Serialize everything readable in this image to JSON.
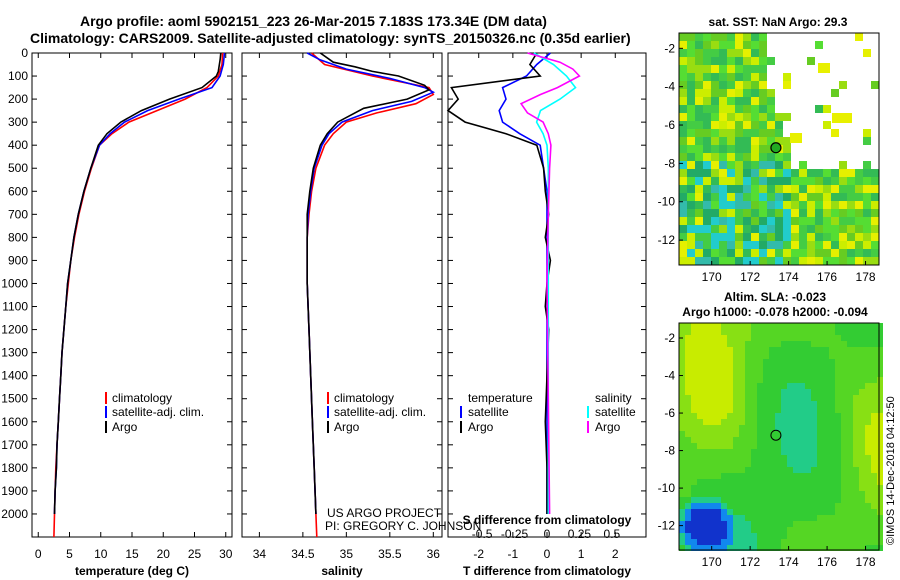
{
  "header": {
    "line1": "Argo profile: aoml 5902151_223 26-Mar-2015 7.183S 173.34E (DM data)",
    "line2": "Climatology: CARS2009. Satellite-adjusted climatology: synTS_20150326.nc (0.35d earlier)"
  },
  "legend_labels": {
    "climatology": "climatology",
    "satellite_adj": "satellite-adj. clim.",
    "argo": "Argo",
    "temperature": "temperature",
    "salinity": "salinity",
    "satellite": "satellite"
  },
  "credits": {
    "project": "US ARGO PROJECT",
    "pi": "PI: GREGORY C. JOHNSON",
    "stamp": "©IMOS 14-Dec-2018 04:12:50"
  },
  "map_titles": {
    "sst": "sat. SST: NaN Argo: 29.3",
    "sla1": "Altim. SLA: -0.023",
    "sla2": "Argo h1000: -0.078 h2000: -0.094"
  },
  "colors": {
    "climatology": "#ff0000",
    "satellite": "#0000ff",
    "argo": "#000000",
    "salinity_sat": "#00ffff",
    "salinity_argo": "#ff00ff"
  },
  "chart_data": [
    {
      "id": "temperature",
      "type": "line",
      "xlabel": "temperature (deg C)",
      "ylabel": "",
      "xlim": [
        -1,
        31
      ],
      "ylim": [
        2100,
        0
      ],
      "x_ticks": [
        0,
        5,
        10,
        15,
        20,
        25,
        30
      ],
      "y_ticks": [
        0,
        100,
        200,
        300,
        400,
        500,
        600,
        700,
        800,
        900,
        1000,
        1100,
        1200,
        1300,
        1400,
        1500,
        1600,
        1700,
        1800,
        1900,
        2000
      ],
      "series": [
        {
          "name": "climatology",
          "color": "#ff0000",
          "points": [
            [
              29.5,
              0
            ],
            [
              29.4,
              50
            ],
            [
              28.8,
              100
            ],
            [
              27,
              150
            ],
            [
              23.5,
              200
            ],
            [
              19,
              250
            ],
            [
              14.5,
              300
            ],
            [
              11.8,
              350
            ],
            [
              9.8,
              400
            ],
            [
              8.5,
              500
            ],
            [
              7.4,
              600
            ],
            [
              6.5,
              700
            ],
            [
              5.8,
              800
            ],
            [
              5.2,
              900
            ],
            [
              4.8,
              1000
            ],
            [
              4.4,
              1100
            ],
            [
              4.1,
              1200
            ],
            [
              3.8,
              1300
            ],
            [
              3.6,
              1400
            ],
            [
              3.4,
              1500
            ],
            [
              3.2,
              1600
            ],
            [
              3,
              1700
            ],
            [
              2.8,
              1800
            ],
            [
              2.7,
              1900
            ],
            [
              2.6,
              2000
            ],
            [
              2.5,
              2100
            ]
          ]
        },
        {
          "name": "satellite-adj. clim.",
          "color": "#0000ff",
          "points": [
            [
              29.8,
              0
            ],
            [
              29.6,
              50
            ],
            [
              29.1,
              100
            ],
            [
              27.8,
              150
            ],
            [
              22.5,
              200
            ],
            [
              17.5,
              250
            ],
            [
              13.8,
              300
            ],
            [
              11.5,
              350
            ],
            [
              9.8,
              400
            ],
            [
              8.4,
              500
            ],
            [
              7.3,
              600
            ],
            [
              6.4,
              700
            ],
            [
              5.7,
              800
            ],
            [
              5.2,
              900
            ],
            [
              4.7,
              1000
            ],
            [
              4.4,
              1100
            ],
            [
              4.1,
              1200
            ],
            [
              3.8,
              1300
            ],
            [
              3.6,
              1400
            ],
            [
              3.4,
              1500
            ],
            [
              3.2,
              1600
            ],
            [
              3,
              1700
            ],
            [
              2.9,
              1800
            ],
            [
              2.7,
              1900
            ],
            [
              2.6,
              2000
            ]
          ]
        },
        {
          "name": "Argo",
          "color": "#000000",
          "points": [
            [
              29.2,
              0
            ],
            [
              29.1,
              30
            ],
            [
              28.8,
              80
            ],
            [
              28.5,
              100
            ],
            [
              26.2,
              150
            ],
            [
              21,
              200
            ],
            [
              16.5,
              250
            ],
            [
              13.2,
              300
            ],
            [
              11,
              350
            ],
            [
              9.6,
              400
            ],
            [
              8.4,
              500
            ],
            [
              7.3,
              600
            ],
            [
              6.4,
              700
            ],
            [
              5.7,
              800
            ],
            [
              5.2,
              900
            ],
            [
              4.7,
              1000
            ],
            [
              4.4,
              1100
            ],
            [
              4.1,
              1200
            ],
            [
              3.8,
              1300
            ],
            [
              3.6,
              1400
            ],
            [
              3.4,
              1500
            ],
            [
              3.2,
              1600
            ],
            [
              3,
              1700
            ],
            [
              2.9,
              1800
            ],
            [
              2.7,
              1900
            ],
            [
              2.6,
              2000
            ]
          ]
        }
      ]
    },
    {
      "id": "salinity",
      "type": "line",
      "xlabel": "salinity",
      "ylabel": "",
      "xlim": [
        33.8,
        36.1
      ],
      "ylim": [
        2100,
        0
      ],
      "x_ticks": [
        34,
        34.5,
        35,
        35.5,
        36
      ],
      "x_ticklabels": [
        "34",
        "34.5",
        "35",
        "35.5",
        "36"
      ],
      "series": [
        {
          "name": "climatology",
          "color": "#ff0000",
          "points": [
            [
              34.6,
              0
            ],
            [
              34.75,
              50
            ],
            [
              35.3,
              100
            ],
            [
              35.95,
              150
            ],
            [
              36.0,
              180
            ],
            [
              35.8,
              220
            ],
            [
              35.35,
              260
            ],
            [
              35.0,
              300
            ],
            [
              34.85,
              350
            ],
            [
              34.75,
              400
            ],
            [
              34.65,
              500
            ],
            [
              34.6,
              600
            ],
            [
              34.57,
              700
            ],
            [
              34.55,
              800
            ],
            [
              34.55,
              1000
            ],
            [
              34.57,
              1200
            ],
            [
              34.59,
              1400
            ],
            [
              34.61,
              1600
            ],
            [
              34.63,
              1800
            ],
            [
              34.65,
              2000
            ],
            [
              34.66,
              2100
            ]
          ]
        },
        {
          "name": "satellite-adj. clim.",
          "color": "#0000ff",
          "points": [
            [
              34.55,
              0
            ],
            [
              34.7,
              30
            ],
            [
              35.0,
              70
            ],
            [
              35.5,
              110
            ],
            [
              35.9,
              150
            ],
            [
              36.0,
              170
            ],
            [
              35.75,
              210
            ],
            [
              35.3,
              250
            ],
            [
              34.95,
              300
            ],
            [
              34.8,
              350
            ],
            [
              34.72,
              400
            ],
            [
              34.63,
              500
            ],
            [
              34.59,
              600
            ],
            [
              34.56,
              700
            ],
            [
              34.55,
              800
            ],
            [
              34.55,
              1000
            ],
            [
              34.57,
              1200
            ],
            [
              34.59,
              1400
            ],
            [
              34.61,
              1600
            ],
            [
              34.63,
              1800
            ],
            [
              34.65,
              2000
            ]
          ]
        },
        {
          "name": "Argo",
          "color": "#000000",
          "points": [
            [
              34.7,
              0
            ],
            [
              34.85,
              40
            ],
            [
              35.1,
              60
            ],
            [
              35.3,
              80
            ],
            [
              35.6,
              100
            ],
            [
              35.9,
              140
            ],
            [
              35.95,
              160
            ],
            [
              35.7,
              200
            ],
            [
              35.2,
              240
            ],
            [
              34.9,
              300
            ],
            [
              34.78,
              350
            ],
            [
              34.7,
              400
            ],
            [
              34.62,
              500
            ],
            [
              34.58,
              600
            ],
            [
              34.55,
              700
            ],
            [
              34.55,
              800
            ],
            [
              34.55,
              1000
            ],
            [
              34.57,
              1200
            ],
            [
              34.59,
              1400
            ],
            [
              34.61,
              1600
            ],
            [
              34.63,
              1800
            ],
            [
              34.65,
              2000
            ]
          ]
        }
      ]
    },
    {
      "id": "difference",
      "type": "line",
      "xlabel": "T difference from climatology",
      "x_ticks": [
        -2,
        -1,
        0,
        1,
        2
      ],
      "x_ticklabels": [
        "-2",
        "-1",
        "0",
        "1",
        "2"
      ],
      "xlim": [
        -2.9,
        2.9
      ],
      "secondary_x": {
        "label": "S difference from climatology",
        "ticks": [
          -0.5,
          -0.25,
          0,
          0.25,
          0.5
        ],
        "ticklabels": [
          "-0.5",
          "-0.25",
          "0",
          "0.25",
          "0.5"
        ],
        "scale": 3.8
      },
      "ylim": [
        2100,
        0
      ],
      "series": [
        {
          "name": "temperature satellite",
          "color": "#0000ff",
          "units": "T",
          "points": [
            [
              0.1,
              0
            ],
            [
              -0.3,
              50
            ],
            [
              -0.6,
              100
            ],
            [
              -1.3,
              150
            ],
            [
              -1.2,
              200
            ],
            [
              -1.4,
              250
            ],
            [
              -1.3,
              300
            ],
            [
              -0.8,
              350
            ],
            [
              -0.2,
              400
            ],
            [
              -0.1,
              500
            ],
            [
              0,
              600
            ],
            [
              0,
              800
            ],
            [
              0,
              1000
            ],
            [
              0,
              1500
            ],
            [
              0,
              2000
            ]
          ]
        },
        {
          "name": "temperature Argo",
          "color": "#000000",
          "units": "T",
          "points": [
            [
              -0.3,
              0
            ],
            [
              -0.5,
              50
            ],
            [
              -0.2,
              100
            ],
            [
              -2.8,
              150
            ],
            [
              -2.6,
              200
            ],
            [
              -2.9,
              250
            ],
            [
              -2.4,
              300
            ],
            [
              -1.2,
              350
            ],
            [
              -0.3,
              400
            ],
            [
              -0.1,
              500
            ],
            [
              -0.05,
              600
            ],
            [
              0.05,
              700
            ],
            [
              -0.05,
              800
            ],
            [
              0.1,
              900
            ],
            [
              0,
              1000
            ],
            [
              -0.05,
              1100
            ],
            [
              0.05,
              1200
            ],
            [
              0,
              1400
            ],
            [
              -0.05,
              1600
            ],
            [
              0,
              1800
            ],
            [
              0,
              2000
            ]
          ]
        },
        {
          "name": "salinity satellite",
          "color": "#00ffff",
          "units": "S",
          "points": [
            [
              -0.1,
              0
            ],
            [
              0.05,
              50
            ],
            [
              0.15,
              100
            ],
            [
              0.22,
              150
            ],
            [
              0.1,
              200
            ],
            [
              -0.05,
              250
            ],
            [
              -0.08,
              300
            ],
            [
              -0.03,
              350
            ],
            [
              0,
              400
            ],
            [
              0.01,
              500
            ],
            [
              0.01,
              700
            ],
            [
              0.01,
              1000
            ],
            [
              0.01,
              1500
            ],
            [
              0.01,
              2000
            ]
          ]
        },
        {
          "name": "salinity Argo",
          "color": "#ff00ff",
          "units": "S",
          "points": [
            [
              -0.15,
              0
            ],
            [
              0.1,
              40
            ],
            [
              0.2,
              70
            ],
            [
              0.25,
              100
            ],
            [
              0.08,
              150
            ],
            [
              -0.05,
              180
            ],
            [
              -0.2,
              220
            ],
            [
              -0.15,
              260
            ],
            [
              -0.03,
              300
            ],
            [
              0.01,
              350
            ],
            [
              0.03,
              400
            ],
            [
              0.02,
              500
            ],
            [
              0.01,
              700
            ],
            [
              0,
              1000
            ],
            [
              0.01,
              1500
            ],
            [
              0.02,
              2000
            ]
          ]
        }
      ]
    },
    {
      "id": "sst-map",
      "type": "heatmap",
      "title": "sat. SST: NaN Argo: 29.3",
      "xlim": [
        168.3,
        178.7
      ],
      "ylim": [
        -13.3,
        -1.2
      ],
      "x_ticks": [
        170,
        172,
        174,
        176,
        178
      ],
      "y_ticks": [
        -2,
        -4,
        -6,
        -8,
        -10,
        -12
      ],
      "marker": [
        173.34,
        -7.183
      ]
    },
    {
      "id": "sla-map",
      "type": "heatmap",
      "title": "Altim. SLA: -0.023",
      "subtitle": "Argo h1000: -0.078 h2000: -0.094",
      "xlim": [
        168.3,
        178.7
      ],
      "ylim": [
        -13.3,
        -1.2
      ],
      "x_ticks": [
        170,
        172,
        174,
        176,
        178
      ],
      "y_ticks": [
        -2,
        -4,
        -6,
        -8,
        -10,
        -12
      ],
      "marker": [
        173.34,
        -7.183
      ]
    }
  ]
}
